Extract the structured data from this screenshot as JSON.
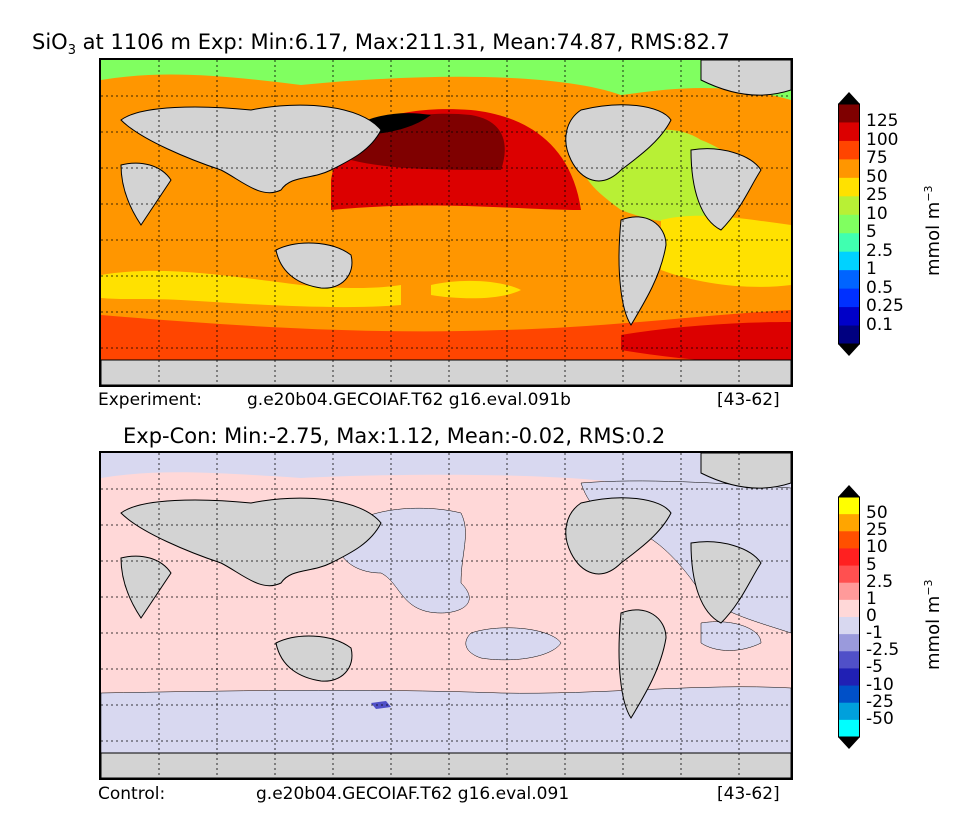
{
  "panels": [
    {
      "title_prefix": "SiO",
      "title_sub": "3",
      "title_rest": " at 1106 m Exp: Min:6.17, Max:211.31, Mean:74.87, RMS:82.7",
      "caption": {
        "left": "Experiment:",
        "middle": "g.e20b04.GECOIAF.T62 g16.eval.091b",
        "right": "[43-62]"
      },
      "colorbar": {
        "unit": "mmol m",
        "unit_exp": "−3",
        "labels": [
          "125",
          "100",
          "75",
          "50",
          "25",
          "10",
          "5",
          "2.5",
          "1",
          "0.5",
          "0.25",
          "0.1"
        ],
        "colors": [
          "#7f0000",
          "#dc0000",
          "#ff4500",
          "#ff9600",
          "#ffe100",
          "#b8f035",
          "#80ff60",
          "#40ffb0",
          "#00d2ff",
          "#0064ff",
          "#0030ff",
          "#0000c8",
          "#000080"
        ],
        "over_color": "#000000",
        "under_color": "#000000"
      }
    },
    {
      "title": "Exp-Con: Min:-2.75, Max:1.12, Mean:-0.02, RMS:0.2",
      "caption": {
        "left": "Control:",
        "middle": "g.e20b04.GECOIAF.T62 g16.eval.091",
        "right": "[43-62]"
      },
      "colorbar": {
        "unit": "mmol m",
        "unit_exp": "−3",
        "labels": [
          "50",
          "25",
          "10",
          "5",
          "2.5",
          "1",
          "0",
          "-1",
          "-2.5",
          "-5",
          "-10",
          "-25",
          "-50"
        ],
        "colors": [
          "#ffff00",
          "#ffa500",
          "#ff5000",
          "#ff2020",
          "#ff5050",
          "#ff9a9a",
          "#ffd8d8",
          "#d8d8f0",
          "#9a9adc",
          "#5050c8",
          "#2020b4",
          "#0050c8",
          "#00a0dc",
          "#00ffff"
        ],
        "over_color": "#000000",
        "under_color": "#000000"
      }
    }
  ],
  "chart_data": [
    {
      "type": "heatmap",
      "title": "SiO3 at 1106 m Exp: Min:6.17, Max:211.31, Mean:74.87, RMS:82.7",
      "variable": "SiO3",
      "depth": "1106 m",
      "stats": {
        "min": 6.17,
        "max": 211.31,
        "mean": 74.87,
        "rms": 82.7
      },
      "colorbar_levels": [
        0.1,
        0.25,
        0.5,
        1,
        2.5,
        5,
        10,
        25,
        50,
        75,
        100,
        125
      ],
      "unit": "mmol m^-3",
      "grid": true
    },
    {
      "type": "heatmap",
      "title": "Exp-Con: Min:-2.75, Max:1.12, Mean:-0.02, RMS:0.2",
      "stats": {
        "min": -2.75,
        "max": 1.12,
        "mean": -0.02,
        "rms": 0.2
      },
      "colorbar_levels": [
        -50,
        -25,
        -10,
        -5,
        -2.5,
        -1,
        0,
        1,
        2.5,
        5,
        10,
        25,
        50
      ],
      "unit": "mmol m^-3",
      "grid": true
    }
  ]
}
